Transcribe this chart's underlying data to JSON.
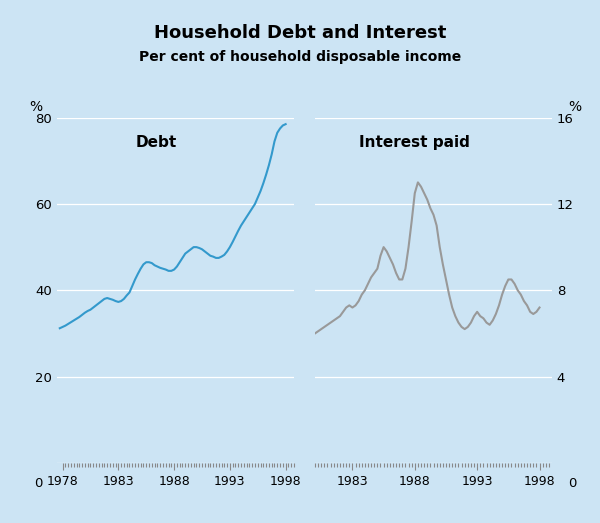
{
  "title": "Household Debt and Interest",
  "subtitle": "Per cent of household disposable income",
  "background_color": "#cce4f4",
  "left_ylabel": "%",
  "right_ylabel": "%",
  "left_panel_label": "Debt",
  "right_panel_label": "Interest paid",
  "debt_color": "#3399cc",
  "interest_color": "#999999",
  "left_ylim": [
    0,
    80
  ],
  "right_ylim": [
    0,
    16
  ],
  "left_yticks": [
    0,
    20,
    40,
    60,
    80
  ],
  "right_yticks": [
    0,
    4,
    8,
    12,
    16
  ],
  "left_xticks": [
    1978,
    1983,
    1988,
    1993,
    1998
  ],
  "right_xticks": [
    1983,
    1988,
    1993,
    1998
  ],
  "debt_years": [
    1977.75,
    1978.0,
    1978.25,
    1978.5,
    1978.75,
    1979.0,
    1979.25,
    1979.5,
    1979.75,
    1980.0,
    1980.25,
    1980.5,
    1980.75,
    1981.0,
    1981.25,
    1981.5,
    1981.75,
    1982.0,
    1982.25,
    1982.5,
    1982.75,
    1983.0,
    1983.25,
    1983.5,
    1983.75,
    1984.0,
    1984.25,
    1984.5,
    1984.75,
    1985.0,
    1985.25,
    1985.5,
    1985.75,
    1986.0,
    1986.25,
    1986.5,
    1986.75,
    1987.0,
    1987.25,
    1987.5,
    1987.75,
    1988.0,
    1988.25,
    1988.5,
    1988.75,
    1989.0,
    1989.25,
    1989.5,
    1989.75,
    1990.0,
    1990.25,
    1990.5,
    1990.75,
    1991.0,
    1991.25,
    1991.5,
    1991.75,
    1992.0,
    1992.25,
    1992.5,
    1992.75,
    1993.0,
    1993.25,
    1993.5,
    1993.75,
    1994.0,
    1994.25,
    1994.5,
    1994.75,
    1995.0,
    1995.25,
    1995.5,
    1995.75,
    1996.0,
    1996.25,
    1996.5,
    1996.75,
    1997.0,
    1997.25,
    1997.5,
    1997.75,
    1998.0
  ],
  "debt_values": [
    31.2,
    31.5,
    31.8,
    32.2,
    32.6,
    33.0,
    33.4,
    33.8,
    34.3,
    34.8,
    35.2,
    35.5,
    36.0,
    36.5,
    37.0,
    37.5,
    38.0,
    38.2,
    38.0,
    37.8,
    37.5,
    37.3,
    37.5,
    38.0,
    38.8,
    39.5,
    41.0,
    42.5,
    43.8,
    45.0,
    46.0,
    46.5,
    46.5,
    46.3,
    45.8,
    45.5,
    45.2,
    45.0,
    44.8,
    44.5,
    44.5,
    44.8,
    45.5,
    46.5,
    47.5,
    48.5,
    49.0,
    49.5,
    50.0,
    50.0,
    49.8,
    49.5,
    49.0,
    48.5,
    48.0,
    47.8,
    47.5,
    47.5,
    47.8,
    48.2,
    49.0,
    50.0,
    51.2,
    52.5,
    53.8,
    55.0,
    56.0,
    57.0,
    58.0,
    59.0,
    60.0,
    61.5,
    63.0,
    64.8,
    66.8,
    69.0,
    71.5,
    74.5,
    76.5,
    77.5,
    78.2,
    78.5
  ],
  "interest_years": [
    1980.0,
    1980.25,
    1980.5,
    1980.75,
    1981.0,
    1981.25,
    1981.5,
    1981.75,
    1982.0,
    1982.25,
    1982.5,
    1982.75,
    1983.0,
    1983.25,
    1983.5,
    1983.75,
    1984.0,
    1984.25,
    1984.5,
    1984.75,
    1985.0,
    1985.25,
    1985.5,
    1985.75,
    1986.0,
    1986.25,
    1986.5,
    1986.75,
    1987.0,
    1987.25,
    1987.5,
    1987.75,
    1988.0,
    1988.25,
    1988.5,
    1988.75,
    1989.0,
    1989.25,
    1989.5,
    1989.75,
    1990.0,
    1990.25,
    1990.5,
    1990.75,
    1991.0,
    1991.25,
    1991.5,
    1991.75,
    1992.0,
    1992.25,
    1992.5,
    1992.75,
    1993.0,
    1993.25,
    1993.5,
    1993.75,
    1994.0,
    1994.25,
    1994.5,
    1994.75,
    1995.0,
    1995.25,
    1995.5,
    1995.75,
    1996.0,
    1996.25,
    1996.5,
    1996.75,
    1997.0,
    1997.25,
    1997.5,
    1997.75,
    1998.0
  ],
  "interest_values": [
    6.0,
    6.1,
    6.2,
    6.3,
    6.4,
    6.5,
    6.6,
    6.7,
    6.8,
    7.0,
    7.2,
    7.3,
    7.2,
    7.3,
    7.5,
    7.8,
    8.0,
    8.3,
    8.6,
    8.8,
    9.0,
    9.6,
    10.0,
    9.8,
    9.5,
    9.2,
    8.8,
    8.5,
    8.5,
    9.0,
    10.0,
    11.2,
    12.5,
    13.0,
    12.8,
    12.5,
    12.2,
    11.8,
    11.5,
    11.0,
    10.0,
    9.2,
    8.5,
    7.8,
    7.2,
    6.8,
    6.5,
    6.3,
    6.2,
    6.3,
    6.5,
    6.8,
    7.0,
    6.8,
    6.7,
    6.5,
    6.4,
    6.6,
    6.9,
    7.3,
    7.8,
    8.2,
    8.5,
    8.5,
    8.3,
    8.0,
    7.8,
    7.5,
    7.3,
    7.0,
    6.9,
    7.0,
    7.2
  ]
}
